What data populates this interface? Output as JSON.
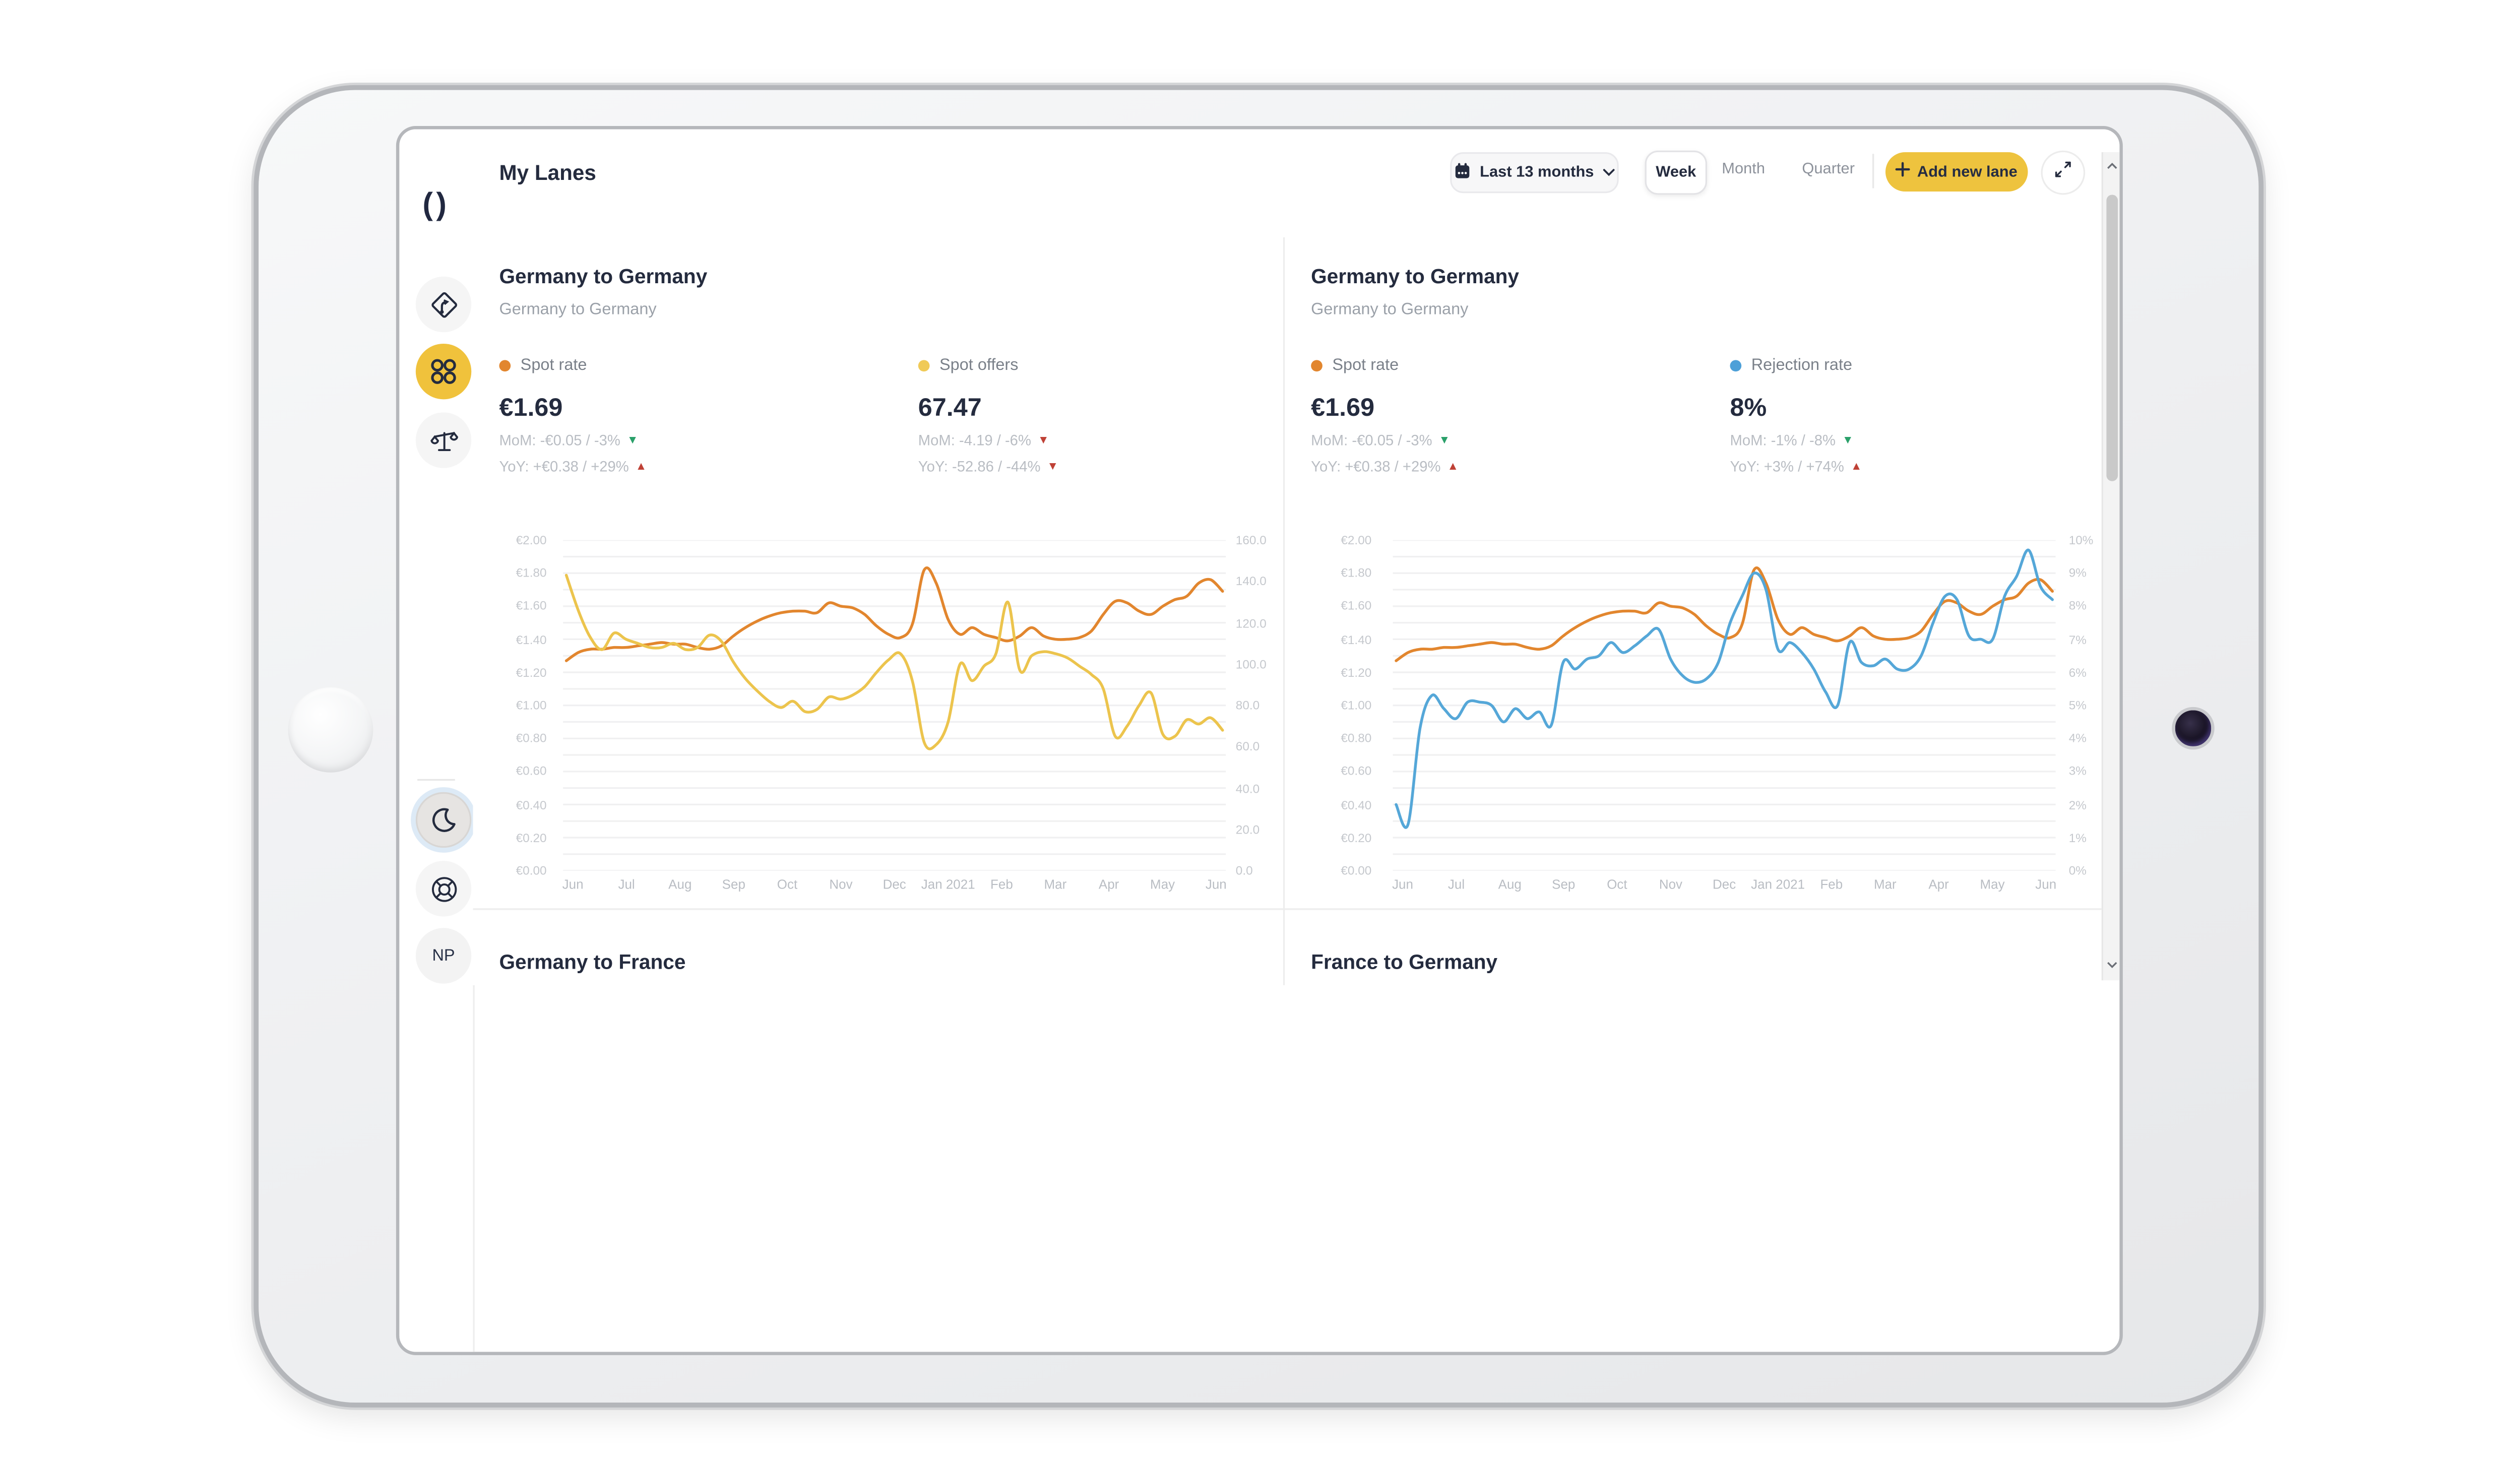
{
  "device": {
    "type": "tablet-landscape",
    "features": [
      "home-button-left-bezel",
      "camera-right-bezel"
    ]
  },
  "app": {
    "sidebar": {
      "logo_text": "()",
      "items": [
        {
          "name": "route-sign",
          "active": false
        },
        {
          "name": "my-lanes",
          "active": true
        },
        {
          "name": "benchmark-scale",
          "active": false
        }
      ],
      "footer_items": [
        {
          "name": "dark-mode-moon",
          "pressed": true
        },
        {
          "name": "help-lifebuoy",
          "pressed": false
        }
      ],
      "avatar_initials": "NP"
    },
    "header": {
      "title": "My Lanes",
      "date_range_label": "Last 13 months",
      "view_tabs": [
        {
          "label": "Week",
          "active": true
        },
        {
          "label": "Month",
          "active": false
        },
        {
          "label": "Quarter",
          "active": false
        }
      ],
      "add_button_label": "Add new lane"
    },
    "colors": {
      "accent_yellow": "#eec33e",
      "active_icon_yellow": "#f0c23c",
      "navy_text": "#242b3e",
      "spot_rate_orange": "#e2862e",
      "spot_offers_yellow": "#ecc44d",
      "rejection_blue": "#55a7d8",
      "trend_green": "#2aa06a",
      "trend_red": "#bf4136"
    },
    "cards": [
      {
        "title": "Germany to Germany",
        "subtitle": "Germany to Germany",
        "metrics": [
          {
            "legend": "Spot rate",
            "dot_color": "#e2862e",
            "value": "€1.69",
            "mom": {
              "text": "MoM: -€0.05 / -3%",
              "glyph": "▼",
              "color": "#2aa06a"
            },
            "yoy": {
              "text": "YoY: +€0.38 / +29%",
              "glyph": "▲",
              "color": "#bf4136"
            }
          },
          {
            "legend": "Spot offers",
            "dot_color": "#f0ca57",
            "value": "67.47",
            "mom": {
              "text": "MoM: -4.19 / -6%",
              "glyph": "▼",
              "color": "#bf4136"
            },
            "yoy": {
              "text": "YoY: -52.86 / -44%",
              "glyph": "▼",
              "color": "#bf4136"
            }
          }
        ]
      },
      {
        "title": "Germany to Germany",
        "subtitle": "Germany to Germany",
        "metrics": [
          {
            "legend": "Spot rate",
            "dot_color": "#e2862e",
            "value": "€1.69",
            "mom": {
              "text": "MoM: -€0.05 / -3%",
              "glyph": "▼",
              "color": "#2aa06a"
            },
            "yoy": {
              "text": "YoY: +€0.38 / +29%",
              "glyph": "▲",
              "color": "#bf4136"
            }
          },
          {
            "legend": "Rejection rate",
            "dot_color": "#4da0d8",
            "value": "8%",
            "mom": {
              "text": "MoM: -1% / -8%",
              "glyph": "▼",
              "color": "#2aa06a"
            },
            "yoy": {
              "text": "YoY: +3% / +74%",
              "glyph": "▲",
              "color": "#bf4136"
            }
          }
        ]
      },
      {
        "title": "Germany to France"
      },
      {
        "title": "France to Germany"
      }
    ]
  },
  "chart_data": [
    {
      "type": "line",
      "title": "Germany to Germany — Spot rate vs Spot offers",
      "x_labels": [
        "Jun",
        "Jul",
        "Aug",
        "Sep",
        "Oct",
        "Nov",
        "Dec",
        "Jan 2021",
        "Feb",
        "Mar",
        "Apr",
        "May",
        "Jun"
      ],
      "grid": true,
      "legend_position": "top",
      "axes": {
        "left": {
          "min": 0,
          "max": 2,
          "tick_labels": [
            "€2.00",
            "€1.80",
            "€1.60",
            "€1.40",
            "€1.20",
            "€1.00",
            "€0.80",
            "€0.60",
            "€0.40",
            "€0.20",
            "€0.00"
          ]
        },
        "right": {
          "min": 0,
          "max": 160,
          "tick_labels": [
            "160.0",
            "140.0",
            "120.0",
            "100.0",
            "80.0",
            "60.0",
            "40.0",
            "20.0",
            "0.0"
          ]
        }
      },
      "series": [
        {
          "name": "Spot rate",
          "axis": "left",
          "color": "#e2862e",
          "values": [
            1.27,
            1.32,
            1.34,
            1.34,
            1.35,
            1.35,
            1.36,
            1.37,
            1.38,
            1.37,
            1.37,
            1.35,
            1.34,
            1.36,
            1.42,
            1.47,
            1.51,
            1.54,
            1.56,
            1.57,
            1.57,
            1.56,
            1.62,
            1.6,
            1.59,
            1.55,
            1.48,
            1.43,
            1.41,
            1.49,
            1.82,
            1.74,
            1.52,
            1.43,
            1.47,
            1.43,
            1.41,
            1.39,
            1.42,
            1.47,
            1.42,
            1.4,
            1.4,
            1.41,
            1.45,
            1.55,
            1.63,
            1.62,
            1.57,
            1.55,
            1.6,
            1.64,
            1.66,
            1.74,
            1.76,
            1.69
          ]
        },
        {
          "name": "Spot offers",
          "axis": "right",
          "color": "#ecc44d",
          "values": [
            143,
            126,
            113,
            107,
            115,
            112,
            110,
            108,
            108,
            110,
            107,
            108,
            114,
            111,
            101,
            93,
            87,
            82,
            79,
            82,
            77,
            78,
            84,
            83,
            85,
            89,
            96,
            102,
            105,
            92,
            62,
            61,
            72,
            100,
            92,
            99,
            105,
            130,
            97,
            104,
            106,
            105,
            103,
            99,
            95,
            88,
            65,
            70,
            80,
            86,
            66,
            65,
            73,
            71,
            74,
            68
          ]
        }
      ]
    },
    {
      "type": "line",
      "title": "Germany to Germany — Spot rate vs Rejection rate",
      "x_labels": [
        "Jun",
        "Jul",
        "Aug",
        "Sep",
        "Oct",
        "Nov",
        "Dec",
        "Jan 2021",
        "Feb",
        "Mar",
        "Apr",
        "May",
        "Jun"
      ],
      "grid": true,
      "legend_position": "top",
      "axes": {
        "left": {
          "min": 0,
          "max": 2,
          "tick_labels": [
            "€2.00",
            "€1.80",
            "€1.60",
            "€1.40",
            "€1.20",
            "€1.00",
            "€0.80",
            "€0.60",
            "€0.40",
            "€0.20",
            "€0.00"
          ]
        },
        "right": {
          "min": 0,
          "max": 10,
          "tick_labels": [
            "10%",
            "9%",
            "8%",
            "7%",
            "6%",
            "5%",
            "4%",
            "3%",
            "2%",
            "1%",
            "0%"
          ]
        }
      },
      "series": [
        {
          "name": "Spot rate",
          "axis": "left",
          "color": "#e2862e",
          "values": [
            1.27,
            1.32,
            1.34,
            1.34,
            1.35,
            1.35,
            1.36,
            1.37,
            1.38,
            1.37,
            1.37,
            1.35,
            1.34,
            1.36,
            1.42,
            1.47,
            1.51,
            1.54,
            1.56,
            1.57,
            1.57,
            1.56,
            1.62,
            1.6,
            1.59,
            1.55,
            1.48,
            1.43,
            1.41,
            1.49,
            1.82,
            1.74,
            1.52,
            1.43,
            1.47,
            1.43,
            1.41,
            1.39,
            1.42,
            1.47,
            1.42,
            1.4,
            1.4,
            1.41,
            1.45,
            1.55,
            1.63,
            1.62,
            1.57,
            1.55,
            1.6,
            1.64,
            1.66,
            1.74,
            1.76,
            1.69
          ]
        },
        {
          "name": "Rejection rate",
          "axis": "right",
          "color": "#55a7d8",
          "values": [
            2.0,
            1.4,
            4.3,
            5.3,
            4.9,
            4.6,
            5.1,
            5.1,
            5.0,
            4.5,
            4.9,
            4.6,
            4.8,
            4.4,
            6.3,
            6.1,
            6.4,
            6.5,
            6.9,
            6.6,
            6.8,
            7.1,
            7.3,
            6.4,
            5.9,
            5.7,
            5.8,
            6.3,
            7.5,
            8.3,
            9.0,
            8.5,
            6.7,
            6.9,
            6.6,
            6.1,
            5.4,
            5.0,
            6.9,
            6.3,
            6.2,
            6.4,
            6.1,
            6.1,
            6.5,
            7.5,
            8.3,
            8.2,
            7.1,
            7.0,
            7.0,
            8.3,
            8.9,
            9.7,
            8.6,
            8.2
          ]
        }
      ]
    }
  ]
}
